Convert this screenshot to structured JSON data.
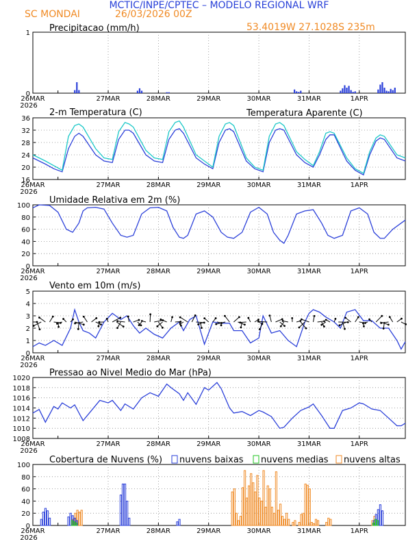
{
  "header": {
    "title": "MCTIC/INPE/CPTEC – MODELO REGIONAL WRF",
    "location": "SC MONDAI",
    "run": "26/03/2026 00Z",
    "coords": "53.4019W 27.1028S 235m"
  },
  "colors": {
    "blue": "#2a3fd9",
    "cyan": "#19c7c7",
    "orange": "#f08a24",
    "green": "#22c522",
    "title_blue": "#2840d8"
  },
  "x_labels": [
    "26MAR",
    "27MAR",
    "28MAR",
    "29MAR",
    "30MAR",
    "31MAR",
    "1APR"
  ],
  "x_year": "2026",
  "chart_data": [
    {
      "id": "precip",
      "type": "bar",
      "title": "Precipitacao (mm/h)",
      "ylim": [
        0,
        1
      ],
      "yticks": [
        0,
        1
      ],
      "hours": [
        20,
        21,
        22,
        50,
        51,
        52,
        64,
        65,
        125,
        126,
        127,
        128,
        147,
        148,
        149,
        150,
        151,
        152,
        153,
        154,
        165,
        166,
        167,
        168,
        169,
        170,
        171,
        172,
        173
      ],
      "values": [
        0.05,
        0.18,
        0.05,
        0.04,
        0.08,
        0.04,
        0.015,
        0.015,
        0.06,
        0.03,
        0.02,
        0.04,
        0.04,
        0.08,
        0.13,
        0.09,
        0.12,
        0.05,
        0.02,
        0.03,
        0.06,
        0.14,
        0.18,
        0.09,
        0.04,
        0.03,
        0.07,
        0.05,
        0.09
      ]
    },
    {
      "id": "temp",
      "type": "line",
      "title": "2-m Temperatura (C)",
      "ylim": [
        16,
        36
      ],
      "yticks": [
        16,
        20,
        24,
        28,
        32,
        36
      ],
      "series": [
        {
          "name": "Temperatura",
          "color": "#2a3fd9",
          "hours": [
            0,
            6,
            10,
            14,
            17,
            20,
            22,
            24,
            30,
            34,
            38,
            41,
            44,
            46,
            48,
            54,
            58,
            62,
            65,
            68,
            70,
            72,
            78,
            82,
            86,
            89,
            92,
            94,
            96,
            102,
            106,
            110,
            113,
            116,
            118,
            120,
            126,
            130,
            134,
            137,
            140,
            142,
            144,
            150,
            154,
            158,
            161,
            164,
            166,
            168,
            174,
            178
          ],
          "values": [
            23,
            21,
            19.5,
            18.5,
            26,
            30,
            31,
            30,
            24,
            22,
            21.5,
            29,
            32,
            32,
            31,
            24,
            22,
            21.5,
            29,
            32,
            32.5,
            31,
            23,
            21,
            19.5,
            28,
            32,
            32.5,
            31.5,
            22,
            19.5,
            18.5,
            28,
            32,
            32.5,
            32,
            24,
            21.5,
            20,
            24,
            29,
            30.5,
            30.5,
            22,
            19,
            17.5,
            24,
            28.5,
            29.5,
            29,
            23,
            22
          ]
        },
        {
          "name": "Temperatura Aparente",
          "color": "#19c7c7",
          "hours": [
            0,
            6,
            10,
            14,
            17,
            20,
            22,
            24,
            30,
            34,
            38,
            41,
            44,
            46,
            48,
            54,
            58,
            62,
            65,
            68,
            70,
            72,
            78,
            82,
            86,
            89,
            92,
            94,
            96,
            102,
            106,
            110,
            113,
            116,
            118,
            120,
            126,
            130,
            134,
            137,
            140,
            142,
            144,
            150,
            154,
            158,
            161,
            164,
            166,
            168,
            174,
            178
          ],
          "values": [
            24,
            22,
            20.5,
            19,
            30,
            33.5,
            34,
            33,
            26,
            23,
            22.5,
            31.5,
            34.5,
            34,
            33,
            25.5,
            23,
            22.5,
            31.5,
            34.5,
            35,
            33,
            24,
            22,
            20,
            30,
            34,
            34.5,
            33.5,
            23,
            20,
            19,
            30,
            34,
            34.5,
            33.5,
            25,
            22.5,
            20.5,
            25,
            31,
            31.5,
            31,
            23,
            19.5,
            18,
            25,
            29.5,
            30.5,
            30,
            24,
            23
          ]
        }
      ],
      "legend": [
        "Temperatura Aparente (C)"
      ]
    },
    {
      "id": "rh",
      "type": "line",
      "title": "Umidade Relativa em 2m (%)",
      "ylim": [
        0,
        100
      ],
      "yticks": [
        0,
        20,
        40,
        60,
        80,
        100
      ],
      "series": [
        {
          "name": "Umidade Relativa",
          "color": "#2a3fd9",
          "hours": [
            0,
            3,
            8,
            12,
            16,
            19,
            22,
            24,
            26,
            30,
            34,
            38,
            42,
            45,
            48,
            52,
            56,
            60,
            64,
            67,
            70,
            72,
            74,
            78,
            82,
            86,
            90,
            93,
            96,
            100,
            104,
            108,
            112,
            115,
            118,
            120,
            122,
            126,
            130,
            134,
            138,
            141,
            144,
            148,
            152,
            156,
            160,
            163,
            166,
            168,
            172,
            176,
            178
          ],
          "values": [
            95,
            100,
            99,
            88,
            60,
            55,
            70,
            90,
            95,
            96,
            93,
            70,
            50,
            47,
            50,
            85,
            95,
            96,
            90,
            63,
            47,
            45,
            50,
            85,
            90,
            80,
            55,
            47,
            45,
            55,
            88,
            96,
            85,
            55,
            42,
            37,
            50,
            85,
            90,
            92,
            70,
            50,
            45,
            50,
            90,
            95,
            85,
            55,
            45,
            45,
            60,
            70,
            75
          ]
        }
      ]
    },
    {
      "id": "wind",
      "type": "line",
      "title": "Vento em 10m (m/s)",
      "ylim": [
        0,
        5
      ],
      "yticks": [
        0,
        1,
        2,
        3,
        4,
        5
      ],
      "series": [
        {
          "name": "Vento",
          "color": "#2a3fd9",
          "hours": [
            0,
            3,
            6,
            10,
            14,
            18,
            20,
            22,
            24,
            27,
            30,
            34,
            38,
            42,
            45,
            48,
            51,
            54,
            58,
            62,
            66,
            70,
            72,
            75,
            78,
            82,
            86,
            90,
            94,
            96,
            100,
            104,
            108,
            110,
            114,
            118,
            122,
            126,
            130,
            132,
            134,
            137,
            140,
            144,
            147,
            150,
            154,
            158,
            162,
            166,
            170,
            174,
            176,
            178
          ],
          "values": [
            0.5,
            0.8,
            0.6,
            1,
            0.6,
            2,
            3.5,
            2.5,
            1.8,
            1.6,
            1.2,
            2.5,
            3.2,
            2.7,
            3,
            2.2,
            1.6,
            2,
            1.5,
            1.2,
            2,
            2.5,
            1.8,
            2.7,
            3,
            0.7,
            2.5,
            2.4,
            2.4,
            1.8,
            1.8,
            0.8,
            1.2,
            3,
            1.6,
            1.8,
            1,
            0.5,
            2.5,
            3.2,
            3.5,
            3.3,
            2.9,
            2.5,
            2,
            3.3,
            3.5,
            2.6,
            2.6,
            2,
            2,
            1,
            0.3,
            0.9
          ]
        }
      ],
      "vector_note": "wind barbs along 2.5 m/s line"
    },
    {
      "id": "mslp",
      "type": "line",
      "title": "Pressao ao Nivel Medio do Mar (hPa)",
      "ylim": [
        1008,
        1020
      ],
      "yticks": [
        1008,
        1010,
        1012,
        1014,
        1016,
        1018,
        1020
      ],
      "series": [
        {
          "name": "Pressao",
          "color": "#2a3fd9",
          "hours": [
            0,
            3,
            6,
            10,
            12,
            14,
            18,
            20,
            24,
            28,
            32,
            36,
            38,
            42,
            44,
            48,
            52,
            56,
            60,
            64,
            66,
            70,
            72,
            74,
            78,
            82,
            84,
            88,
            90,
            94,
            96,
            100,
            104,
            108,
            110,
            114,
            118,
            120,
            124,
            128,
            132,
            134,
            138,
            142,
            144,
            148,
            152,
            156,
            158,
            162,
            166,
            170,
            174,
            176,
            178
          ],
          "values": [
            1013,
            1013.7,
            1011.2,
            1014.3,
            1013.8,
            1015,
            1014,
            1014.6,
            1011.5,
            1013.5,
            1015.5,
            1015,
            1015.5,
            1013.5,
            1014.8,
            1013.8,
            1016,
            1017,
            1016.3,
            1018.7,
            1018,
            1016.8,
            1015.5,
            1017,
            1014.7,
            1018,
            1017.5,
            1019,
            1017.8,
            1014,
            1013,
            1013.3,
            1012.5,
            1013.5,
            1013.2,
            1012.3,
            1010,
            1010.2,
            1012,
            1013.5,
            1014.2,
            1014.8,
            1012.5,
            1010,
            1010,
            1013.5,
            1014,
            1015,
            1014.8,
            1013.8,
            1013.5,
            1012,
            1010.5,
            1010.5,
            1011
          ]
        }
      ]
    },
    {
      "id": "clouds",
      "type": "bar",
      "title": "Cobertura de Nuvens (%)",
      "ylim": [
        0,
        100
      ],
      "yticks": [
        0,
        20,
        40,
        60,
        80,
        100
      ],
      "legend": [
        "nuvens baixas",
        "nuvens medias",
        "nuvens altas"
      ],
      "low_hours": [
        4,
        5,
        6,
        7,
        8,
        17,
        18,
        19,
        20,
        21,
        42,
        43,
        44,
        45,
        46,
        69,
        70,
        163,
        164,
        165,
        166,
        167
      ],
      "low_values": [
        10,
        22,
        28,
        24,
        12,
        14,
        20,
        16,
        12,
        8,
        50,
        68,
        68,
        40,
        12,
        6,
        10,
        8,
        18,
        26,
        34,
        24
      ],
      "mid_hours": [
        19,
        20,
        21,
        163,
        164,
        165
      ],
      "mid_values": [
        8,
        6,
        4,
        4,
        10,
        8
      ],
      "high_hours": [
        19,
        20,
        21,
        22,
        23,
        95,
        96,
        97,
        98,
        99,
        100,
        101,
        102,
        103,
        104,
        105,
        106,
        107,
        108,
        109,
        110,
        111,
        112,
        113,
        114,
        115,
        116,
        117,
        118,
        119,
        120,
        121,
        122,
        124,
        125,
        127,
        128,
        129,
        130,
        131,
        132,
        133,
        134,
        135,
        136,
        140,
        141,
        142,
        162,
        163
      ],
      "high_values": [
        10,
        20,
        25,
        22,
        25,
        55,
        60,
        20,
        8,
        15,
        62,
        90,
        45,
        65,
        85,
        70,
        55,
        82,
        45,
        40,
        90,
        30,
        65,
        60,
        30,
        20,
        88,
        25,
        35,
        15,
        10,
        20,
        10,
        5,
        8,
        5,
        18,
        20,
        68,
        66,
        60,
        5,
        3,
        10,
        8,
        5,
        12,
        10,
        8,
        15
      ]
    }
  ]
}
